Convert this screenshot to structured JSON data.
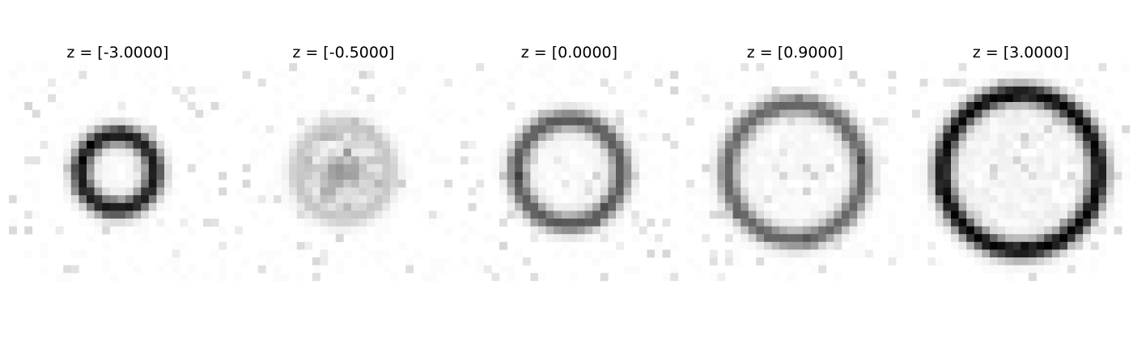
{
  "chart_data": {
    "type": "heatmap",
    "colormap": "gray_r",
    "axis": "off",
    "grid": false,
    "panels": [
      {
        "title": "z = [-3.0000]",
        "z": -3.0,
        "radius": 0.34,
        "ring_intensity": 0.9,
        "center_intensity": 0.05
      },
      {
        "title": "z = [-0.5000]",
        "z": -0.5,
        "radius": 0.42,
        "ring_intensity": 0.22,
        "center_intensity": 0.32
      },
      {
        "title": "z = [0.0000]",
        "z": 0.0,
        "radius": 0.48,
        "ring_intensity": 0.65,
        "center_intensity": 0.05
      },
      {
        "title": "z = [0.9000]",
        "z": 0.9,
        "radius": 0.62,
        "ring_intensity": 0.6,
        "center_intensity": 0.06
      },
      {
        "title": "z = [3.0000]",
        "z": 3.0,
        "radius": 0.72,
        "ring_intensity": 0.98,
        "center_intensity": 0.1
      }
    ]
  }
}
